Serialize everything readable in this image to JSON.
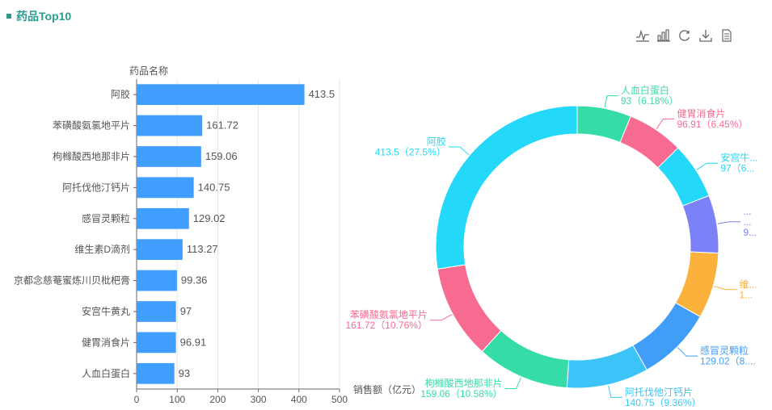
{
  "panel": {
    "title": "药品Top10"
  },
  "toolbox": [
    {
      "name": "line-chart-icon"
    },
    {
      "name": "bar-chart-icon"
    },
    {
      "name": "refresh-icon"
    },
    {
      "name": "download-icon"
    },
    {
      "name": "data-view-icon"
    }
  ],
  "chart_data": [
    {
      "type": "bar",
      "orientation": "horizontal",
      "ylabel": "药品名称",
      "xlabel": "销售额（亿元）",
      "xlim": [
        0,
        500
      ],
      "xticks": [
        0,
        100,
        200,
        300,
        400,
        500
      ],
      "color": "#409eff",
      "categories": [
        "阿胶",
        "苯磺酸氨氯地平片",
        "枸橼酸西地那非片",
        "阿托伐他汀钙片",
        "感冒灵颗粒",
        "维生素D滴剂",
        "京都念慈菴蜜炼川贝枇杷膏",
        "安宫牛黄丸",
        "健胃消食片",
        "人血白蛋白"
      ],
      "values": [
        413.5,
        161.72,
        159.06,
        140.75,
        129.02,
        113.27,
        99.36,
        97,
        96.91,
        93
      ],
      "value_labels": [
        "413.5",
        "161.72",
        "159.06",
        "140.75",
        "129.02",
        "113.27",
        "99.36",
        "97",
        "96.91",
        "93"
      ]
    },
    {
      "type": "pie",
      "donut": true,
      "slices": [
        {
          "name": "人血白蛋白",
          "value": 93,
          "label": "93（6.18%）",
          "name_label": "人血白蛋白",
          "color": "#35dca8"
        },
        {
          "name": "健胃消食片",
          "value": 96.91,
          "label": "96.91（6.45%）",
          "name_label": "健胃消食片",
          "color": "#f76b91"
        },
        {
          "name": "安宫牛黄丸",
          "value": 97,
          "label": "97（6...",
          "name_label": "安宫牛...",
          "color": "#23d8f8"
        },
        {
          "name": "京都念慈菴蜜炼川贝枇杷膏",
          "value": 99.36,
          "label": "9...",
          "name_label": "...",
          "name_label2": "...",
          "color": "#7b82f7"
        },
        {
          "name": "维生素D滴剂",
          "value": 113.27,
          "label": "1...",
          "name_label": "维...",
          "color": "#fcb13c"
        },
        {
          "name": "感冒灵颗粒",
          "value": 129.02,
          "label": "129.02（8....",
          "name_label": "感冒灵颗粒",
          "color": "#409ef9"
        },
        {
          "name": "阿托伐他汀钙片",
          "value": 140.75,
          "label": "140.75（9.36%）",
          "name_label": "阿托伐他汀钙片",
          "color": "#3cc4f8"
        },
        {
          "name": "枸橼酸西地那非片",
          "value": 159.06,
          "label": "159.06（10.58%）",
          "name_label": "枸橼酸西地那非片",
          "color": "#35dca8"
        },
        {
          "name": "苯磺酸氨氯地平片",
          "value": 161.72,
          "label": "161.72（10.76%）",
          "name_label": "苯磺酸氨氯地平片",
          "color": "#f76b91"
        },
        {
          "name": "阿胶",
          "value": 413.5,
          "label": "413.5（27.5%）",
          "name_label": "阿胶",
          "color": "#23d8f8"
        }
      ]
    }
  ]
}
